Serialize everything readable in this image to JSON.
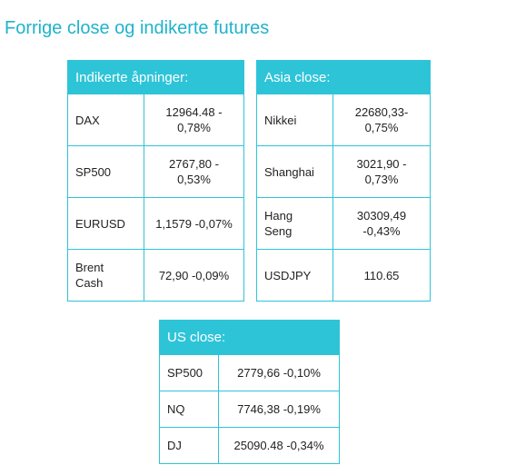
{
  "title": "Forrige close og indikerte futures",
  "tables": [
    {
      "header": "Indikerte åpninger:",
      "rows": [
        [
          "DAX",
          "12964.48 -\n0,78%"
        ],
        [
          "SP500",
          "2767,80 -\n0,53%"
        ],
        [
          "EURUSD",
          "1,1579 -0,07%"
        ],
        [
          "Brent\nCash",
          "72,90 -0,09%"
        ]
      ]
    },
    {
      "header": "Asia close:",
      "rows": [
        [
          "Nikkei",
          "22680,33-\n0,75%"
        ],
        [
          "Shanghai",
          "3021,90 -\n0,73%"
        ],
        [
          "Hang\nSeng",
          "30309,49\n-0,43%"
        ],
        [
          "USDJPY",
          "110.65"
        ]
      ]
    },
    {
      "header": "US close:",
      "rows": [
        [
          "SP500",
          "2779,66 -0,10%"
        ],
        [
          "NQ",
          "7746,38 -0,19%"
        ],
        [
          "DJ",
          "25090.48 -0,34%"
        ]
      ]
    }
  ]
}
